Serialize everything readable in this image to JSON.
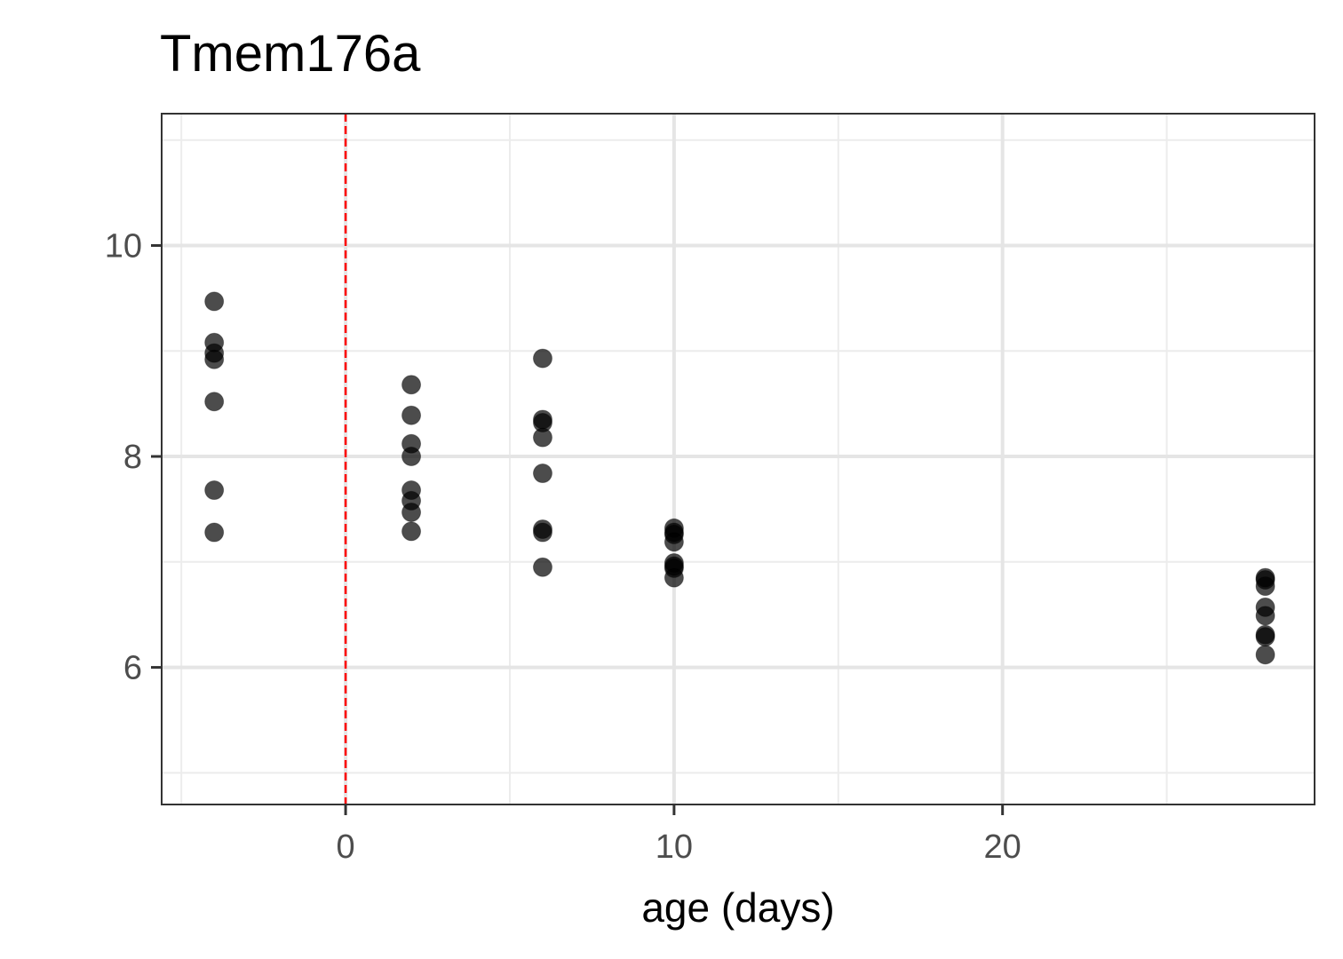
{
  "chart_data": {
    "type": "scatter",
    "title": "Tmem176a",
    "xlabel": "age (days)",
    "ylabel": "",
    "xlim": [
      -5.6,
      29.5
    ],
    "ylim": [
      4.7,
      11.25
    ],
    "x_ticks": [
      0,
      10,
      20
    ],
    "y_ticks": [
      6,
      8,
      10
    ],
    "x_minor": [
      -5,
      5,
      15,
      25
    ],
    "y_minor": [
      5,
      7,
      9,
      11
    ],
    "grid": true,
    "reference_line": {
      "axis": "x",
      "value": 0,
      "color": "#ff0000",
      "style": "dashed"
    },
    "colors": {
      "point": "#000000",
      "point_opacity": 0.7,
      "grid_major": "#e5e5e5",
      "grid_minor": "#ececec",
      "panel_border": "#333333",
      "tick_label": "#4d4d4d"
    },
    "points": [
      {
        "x": -4,
        "y": 9.47
      },
      {
        "x": -4,
        "y": 9.08
      },
      {
        "x": -4,
        "y": 8.98
      },
      {
        "x": -4,
        "y": 8.92
      },
      {
        "x": -4,
        "y": 8.52
      },
      {
        "x": -4,
        "y": 7.68
      },
      {
        "x": -4,
        "y": 7.28
      },
      {
        "x": 2,
        "y": 8.68
      },
      {
        "x": 2,
        "y": 8.39
      },
      {
        "x": 2,
        "y": 8.12
      },
      {
        "x": 2,
        "y": 8.0
      },
      {
        "x": 2,
        "y": 7.68
      },
      {
        "x": 2,
        "y": 7.58
      },
      {
        "x": 2,
        "y": 7.47
      },
      {
        "x": 2,
        "y": 7.29
      },
      {
        "x": 6,
        "y": 8.93
      },
      {
        "x": 6,
        "y": 8.35
      },
      {
        "x": 6,
        "y": 8.32
      },
      {
        "x": 6,
        "y": 8.18
      },
      {
        "x": 6,
        "y": 7.84
      },
      {
        "x": 6,
        "y": 7.31
      },
      {
        "x": 6,
        "y": 7.28
      },
      {
        "x": 6,
        "y": 6.95
      },
      {
        "x": 10,
        "y": 7.32
      },
      {
        "x": 10,
        "y": 7.28
      },
      {
        "x": 10,
        "y": 7.26
      },
      {
        "x": 10,
        "y": 7.19
      },
      {
        "x": 10,
        "y": 6.99
      },
      {
        "x": 10,
        "y": 6.96
      },
      {
        "x": 10,
        "y": 6.94
      },
      {
        "x": 10,
        "y": 6.85
      },
      {
        "x": 28,
        "y": 6.85
      },
      {
        "x": 28,
        "y": 6.83
      },
      {
        "x": 28,
        "y": 6.77
      },
      {
        "x": 28,
        "y": 6.57
      },
      {
        "x": 28,
        "y": 6.49
      },
      {
        "x": 28,
        "y": 6.31
      },
      {
        "x": 28,
        "y": 6.29
      },
      {
        "x": 28,
        "y": 6.12
      }
    ]
  }
}
